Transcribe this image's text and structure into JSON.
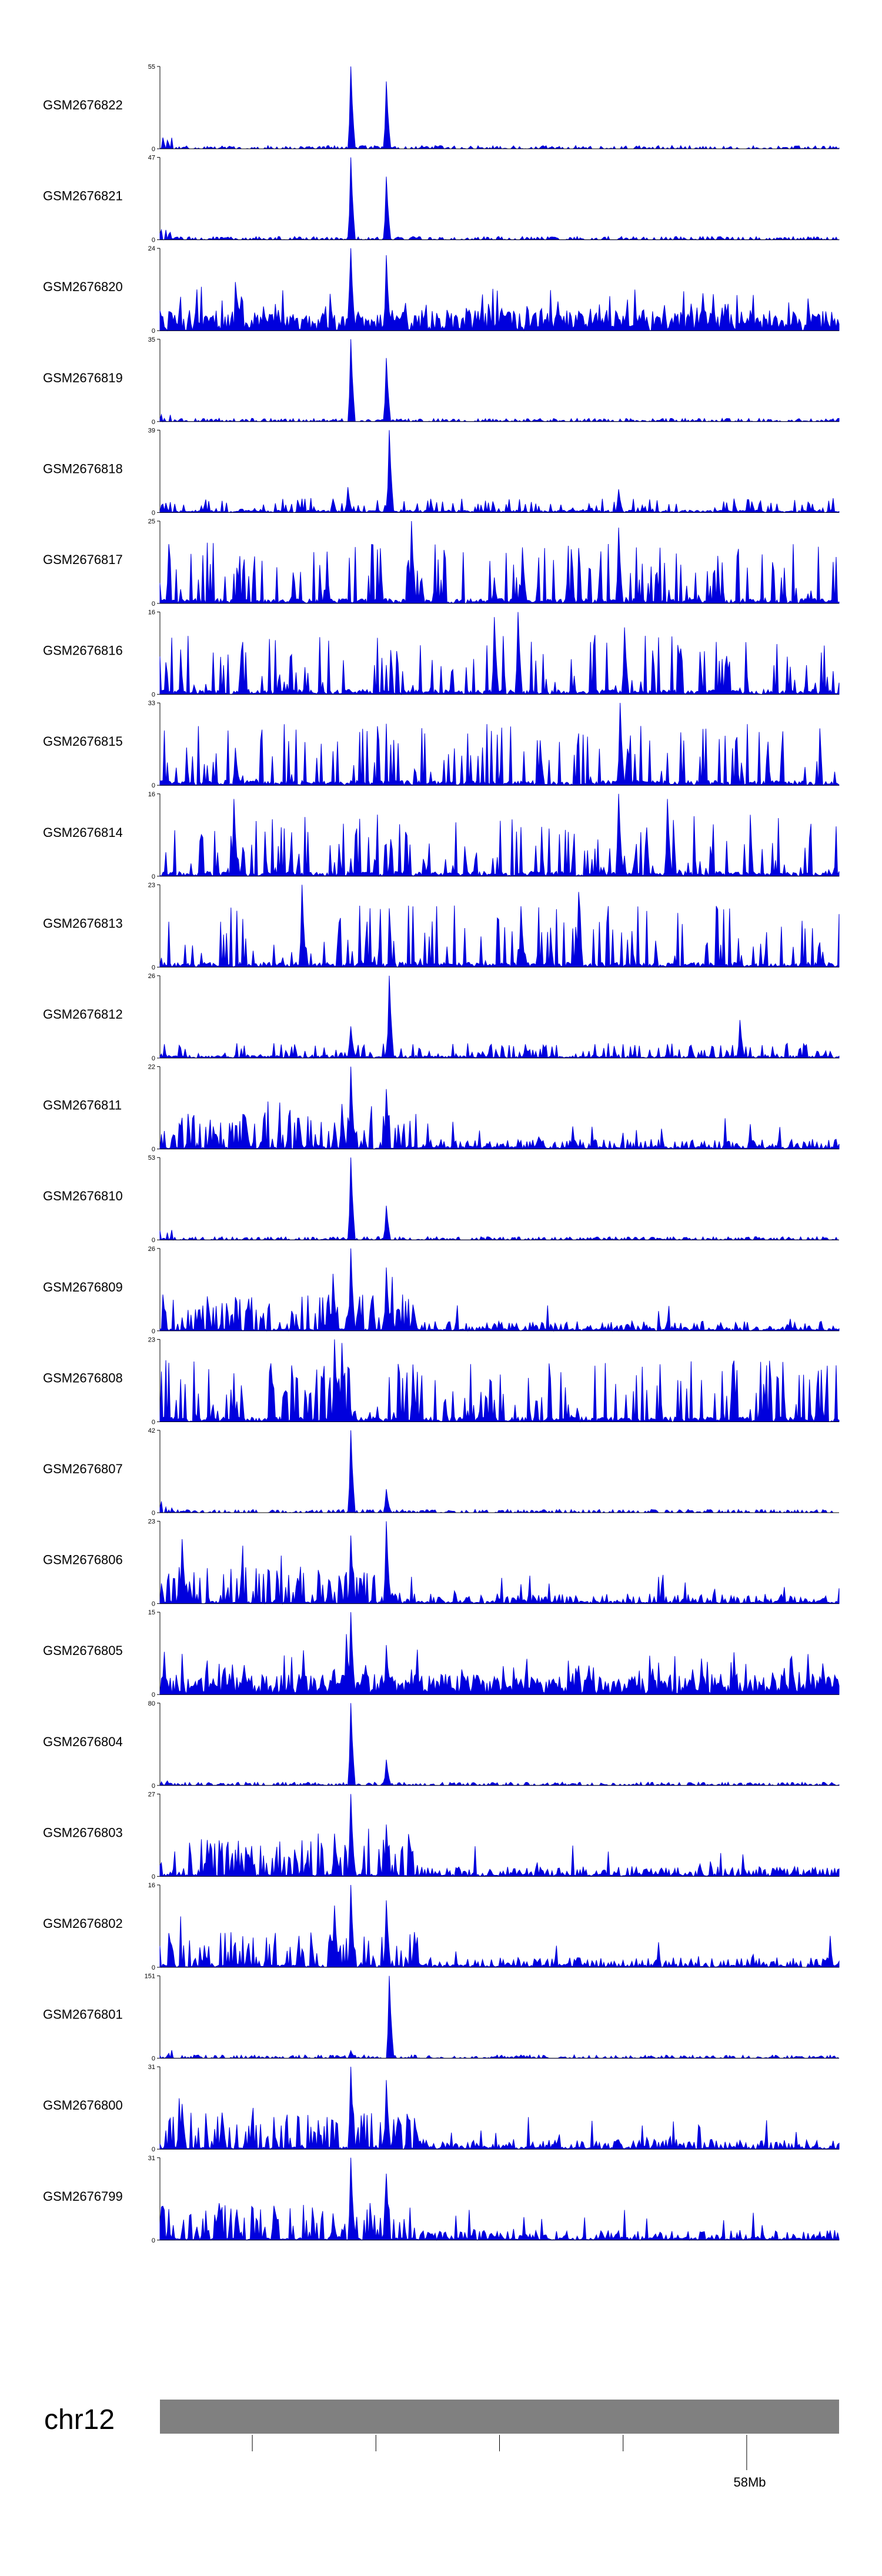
{
  "chart_data": {
    "type": "area",
    "title": "",
    "color": "#0000dd",
    "chromosome": {
      "name": "chr12",
      "position_label": "58Mb",
      "band_color": "#808080"
    },
    "x_range": [
      0,
      100
    ],
    "ticks_pct": [
      13.6,
      31.8,
      50.0,
      68.2,
      86.4
    ],
    "labeled_tick_pct": 86.4,
    "tracks": [
      {
        "name": "GSM2676822",
        "ymin": 0,
        "ymax": 55,
        "mode": "sparse",
        "peaks": [
          [
            28.2,
            55
          ],
          [
            33.3,
            45
          ]
        ]
      },
      {
        "name": "GSM2676821",
        "ymin": 0,
        "ymax": 47,
        "mode": "sparse",
        "peaks": [
          [
            28.2,
            47
          ],
          [
            33.3,
            36
          ]
        ]
      },
      {
        "name": "GSM2676820",
        "ymin": 0,
        "ymax": 24,
        "mode": "dense",
        "peaks": [
          [
            28.2,
            24
          ],
          [
            33.3,
            22
          ],
          [
            27.9,
            12
          ]
        ]
      },
      {
        "name": "GSM2676819",
        "ymin": 0,
        "ymax": 35,
        "mode": "sparse",
        "peaks": [
          [
            28.2,
            35
          ],
          [
            33.3,
            27
          ]
        ]
      },
      {
        "name": "GSM2676818",
        "ymin": 0,
        "ymax": 39,
        "mode": "mid",
        "peaks": [
          [
            33.7,
            39
          ],
          [
            27.6,
            12
          ],
          [
            67.5,
            11
          ]
        ]
      },
      {
        "name": "GSM2676817",
        "ymin": 0,
        "ymax": 25,
        "mode": "spiky",
        "peaks": [
          [
            37.0,
            25
          ],
          [
            67.5,
            23
          ],
          [
            53.4,
            17
          ]
        ]
      },
      {
        "name": "GSM2676816",
        "ymin": 0,
        "ymax": 16,
        "mode": "spiky",
        "peaks": [
          [
            52.8,
            16
          ],
          [
            49.3,
            15
          ],
          [
            68.5,
            13
          ]
        ]
      },
      {
        "name": "GSM2676815",
        "ymin": 0,
        "ymax": 33,
        "mode": "spiky",
        "peaks": [
          [
            67.8,
            33
          ],
          [
            56.0,
            18
          ],
          [
            11.1,
            15
          ]
        ]
      },
      {
        "name": "GSM2676814",
        "ymin": 0,
        "ymax": 16,
        "mode": "spiky",
        "peaks": [
          [
            67.5,
            16
          ],
          [
            10.8,
            15
          ],
          [
            74.7,
            15
          ]
        ]
      },
      {
        "name": "GSM2676813",
        "ymin": 0,
        "ymax": 23,
        "mode": "spiky",
        "peaks": [
          [
            20.9,
            23
          ],
          [
            61.6,
            21
          ],
          [
            53.1,
            17
          ]
        ]
      },
      {
        "name": "GSM2676812",
        "ymin": 0,
        "ymax": 26,
        "mode": "mid",
        "peaks": [
          [
            33.7,
            26
          ],
          [
            85.3,
            12
          ],
          [
            28.2,
            10
          ]
        ]
      },
      {
        "name": "GSM2676811",
        "ymin": 0,
        "ymax": 22,
        "mode": "dense_left",
        "peaks": [
          [
            28.2,
            22
          ],
          [
            33.3,
            16
          ],
          [
            26.8,
            12
          ]
        ]
      },
      {
        "name": "GSM2676810",
        "ymin": 0,
        "ymax": 53,
        "mode": "sparse",
        "peaks": [
          [
            28.2,
            53
          ],
          [
            33.3,
            22
          ]
        ]
      },
      {
        "name": "GSM2676809",
        "ymin": 0,
        "ymax": 26,
        "mode": "dense_left",
        "peaks": [
          [
            28.2,
            26
          ],
          [
            33.3,
            20
          ],
          [
            25.4,
            18
          ]
        ]
      },
      {
        "name": "GSM2676808",
        "ymin": 0,
        "ymax": 23,
        "mode": "spiky",
        "peaks": [
          [
            25.7,
            23
          ],
          [
            26.8,
            22
          ],
          [
            37.3,
            16
          ]
        ]
      },
      {
        "name": "GSM2676807",
        "ymin": 0,
        "ymax": 42,
        "mode": "sparse",
        "peaks": [
          [
            28.2,
            42
          ],
          [
            33.3,
            12
          ]
        ]
      },
      {
        "name": "GSM2676806",
        "ymin": 0,
        "ymax": 23,
        "mode": "dense_left",
        "peaks": [
          [
            33.3,
            23
          ],
          [
            28.2,
            19
          ],
          [
            3.2,
            18
          ]
        ]
      },
      {
        "name": "GSM2676805",
        "ymin": 0,
        "ymax": 15,
        "mode": "dense",
        "peaks": [
          [
            28.2,
            15
          ],
          [
            27.5,
            11
          ],
          [
            33.3,
            9
          ]
        ]
      },
      {
        "name": "GSM2676804",
        "ymin": 0,
        "ymax": 80,
        "mode": "sparse",
        "peaks": [
          [
            28.2,
            80
          ],
          [
            33.3,
            25
          ]
        ]
      },
      {
        "name": "GSM2676803",
        "ymin": 0,
        "ymax": 27,
        "mode": "dense_left",
        "peaks": [
          [
            28.2,
            27
          ],
          [
            33.3,
            17
          ],
          [
            25.7,
            14
          ]
        ]
      },
      {
        "name": "GSM2676802",
        "ymin": 0,
        "ymax": 16,
        "mode": "dense_left",
        "peaks": [
          [
            28.2,
            16
          ],
          [
            33.3,
            13
          ],
          [
            25.7,
            12
          ]
        ]
      },
      {
        "name": "GSM2676801",
        "ymin": 0,
        "ymax": 151,
        "mode": "sparse",
        "peaks": [
          [
            33.7,
            151
          ],
          [
            28.2,
            14
          ]
        ]
      },
      {
        "name": "GSM2676800",
        "ymin": 0,
        "ymax": 31,
        "mode": "dense_left",
        "peaks": [
          [
            28.2,
            31
          ],
          [
            33.3,
            26
          ],
          [
            3.2,
            17
          ]
        ]
      },
      {
        "name": "GSM2676799",
        "ymin": 0,
        "ymax": 31,
        "mode": "dense_left",
        "peaks": [
          [
            28.2,
            31
          ],
          [
            33.3,
            25
          ],
          [
            25.4,
            10
          ]
        ]
      }
    ]
  }
}
